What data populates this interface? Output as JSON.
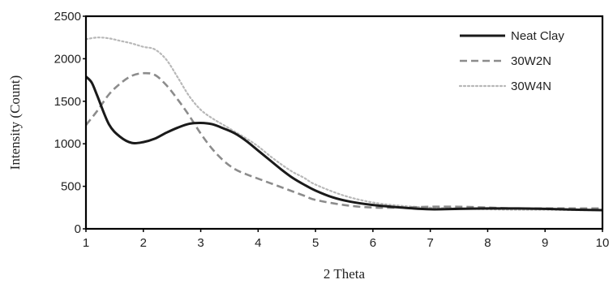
{
  "chart_data": {
    "type": "line",
    "title": "",
    "xlabel": "2 Theta",
    "ylabel": "Intensity (Count)",
    "xlim": [
      1,
      10
    ],
    "ylim": [
      0,
      2500
    ],
    "xticks": [
      1,
      2,
      3,
      4,
      5,
      6,
      7,
      8,
      9,
      10
    ],
    "yticks": [
      0,
      500,
      1000,
      1500,
      2000,
      2500
    ],
    "grid": false,
    "legend_position": "top-right",
    "series": [
      {
        "name": "Neat Clay",
        "color": "#1a1a1a",
        "style": "solid",
        "x": [
          1.0,
          1.1,
          1.2,
          1.4,
          1.6,
          1.8,
          2.0,
          2.2,
          2.4,
          2.6,
          2.8,
          3.0,
          3.2,
          3.4,
          3.6,
          3.8,
          4.0,
          4.2,
          4.4,
          4.6,
          4.8,
          5.0,
          5.3,
          5.6,
          6.0,
          6.5,
          7.0,
          7.5,
          8.0,
          8.5,
          9.0,
          9.5,
          10.0
        ],
        "y": [
          1790,
          1720,
          1560,
          1230,
          1080,
          1010,
          1020,
          1060,
          1130,
          1190,
          1235,
          1245,
          1230,
          1180,
          1120,
          1030,
          920,
          810,
          700,
          600,
          520,
          450,
          370,
          320,
          280,
          250,
          230,
          235,
          240,
          240,
          235,
          225,
          220
        ]
      },
      {
        "name": "30W2N",
        "color": "#8c8c8c",
        "style": "dashed",
        "x": [
          1.0,
          1.2,
          1.4,
          1.6,
          1.8,
          2.0,
          2.2,
          2.4,
          2.6,
          2.8,
          3.0,
          3.2,
          3.4,
          3.6,
          3.8,
          4.0,
          4.2,
          4.4,
          4.6,
          4.8,
          5.0,
          5.5,
          6.0,
          6.5,
          7.0,
          7.5,
          8.0,
          8.5,
          9.0,
          9.5,
          10.0
        ],
        "y": [
          1220,
          1390,
          1580,
          1710,
          1800,
          1830,
          1810,
          1690,
          1520,
          1330,
          1120,
          940,
          800,
          700,
          640,
          590,
          540,
          490,
          440,
          390,
          340,
          280,
          250,
          250,
          260,
          260,
          250,
          240,
          240,
          240,
          240
        ]
      },
      {
        "name": "30W4N",
        "color": "#b8b8b8",
        "style": "dotted",
        "x": [
          1.0,
          1.2,
          1.4,
          1.6,
          1.8,
          2.0,
          2.2,
          2.4,
          2.6,
          2.8,
          3.0,
          3.2,
          3.4,
          3.6,
          3.8,
          4.0,
          4.2,
          4.4,
          4.6,
          4.8,
          5.0,
          5.5,
          6.0,
          6.5,
          7.0,
          7.5,
          8.0,
          8.5,
          9.0,
          9.5,
          10.0
        ],
        "y": [
          2230,
          2250,
          2240,
          2210,
          2180,
          2140,
          2110,
          1990,
          1780,
          1560,
          1400,
          1300,
          1220,
          1140,
          1060,
          970,
          860,
          760,
          670,
          600,
          520,
          390,
          310,
          270,
          250,
          240,
          230,
          225,
          225,
          220,
          220
        ]
      }
    ]
  }
}
